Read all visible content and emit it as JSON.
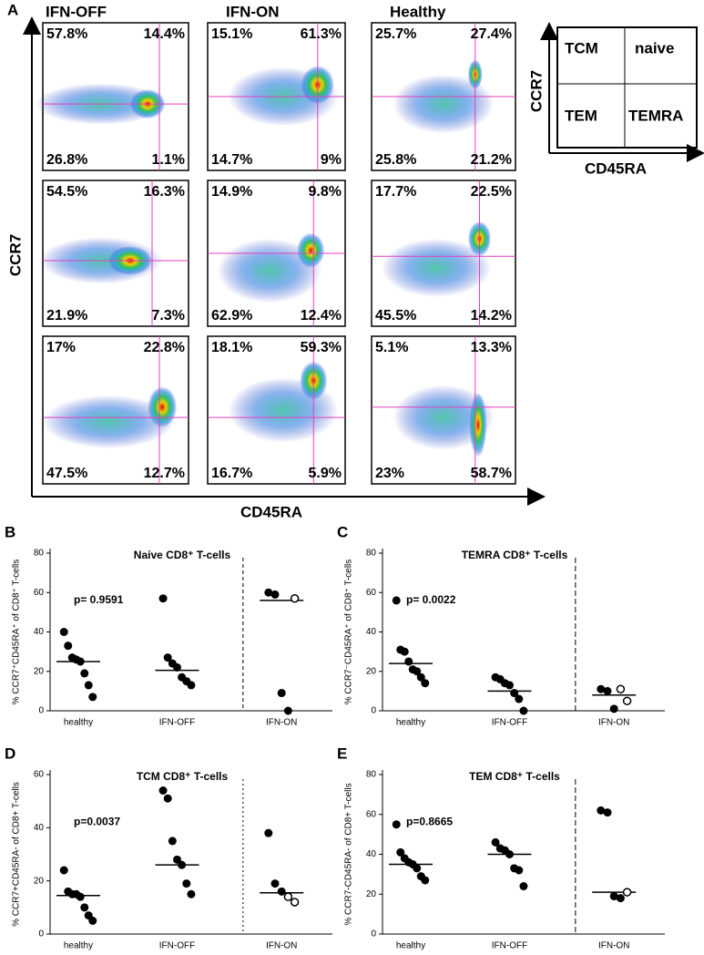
{
  "panel_a": {
    "label": "A",
    "columns": [
      "IFN-OFF",
      "IFN-ON",
      "Healthy"
    ],
    "y_label": "CCR7",
    "x_label": "CD45RA",
    "plots": [
      [
        [
          "57.8%",
          "14.4%",
          "26.8%",
          "1.1%"
        ],
        [
          "15.1%",
          "61.3%",
          "14.7%",
          "9%"
        ],
        [
          "25.7%",
          "27.4%",
          "25.8%",
          "21.2%"
        ]
      ],
      [
        [
          "54.5%",
          "16.3%",
          "21.9%",
          "7.3%"
        ],
        [
          "14.9%",
          "9.8%",
          "62.9%",
          "12.4%"
        ],
        [
          "17.7%",
          "22.5%",
          "45.5%",
          "14.2%"
        ]
      ],
      [
        [
          "17%",
          "22.8%",
          "47.5%",
          "12.7%"
        ],
        [
          "18.1%",
          "59.3%",
          "16.7%",
          "5.9%"
        ],
        [
          "5.1%",
          "13.3%",
          "23%",
          "58.7%"
        ]
      ]
    ],
    "legend": {
      "y_label": "CCR7",
      "x_label": "CD45RA",
      "cells": [
        "TCM",
        "naive",
        "TEM",
        "TEMRA"
      ]
    }
  },
  "chart_data": [
    {
      "type": "strip",
      "panel_label": "B",
      "title": "Naive CD8⁺ T-cells",
      "y_label": "% CCR7⁺CD45RA⁺ of CD8⁺ T-cells",
      "annotation": "p= 0.9591",
      "categories": [
        "healthy",
        "IFN-OFF",
        "IFN-ON"
      ],
      "values": [
        [
          40,
          33,
          27,
          26,
          25,
          19,
          13,
          7
        ],
        [
          57,
          27,
          24,
          22,
          17,
          15,
          13
        ],
        [
          60,
          59,
          9,
          0
        ]
      ],
      "open_values": [
        [],
        [],
        [
          57
        ]
      ],
      "medians": [
        25,
        20.5,
        56
      ],
      "color": "#000000",
      "ylim": [
        0,
        80
      ],
      "yticks": [
        0,
        20,
        40,
        60,
        80
      ]
    },
    {
      "type": "strip",
      "panel_label": "C",
      "title": "TEMRA CD8⁺ T-cells",
      "y_label": "% CCR7⁻CD45RA⁺ of CD8⁺ T-cells",
      "annotation": "p= 0.0022",
      "categories": [
        "healthy",
        "IFN-OFF",
        "IFN-ON"
      ],
      "values": [
        [
          56,
          31,
          30,
          25,
          21,
          20,
          17,
          14
        ],
        [
          17,
          16,
          14,
          13,
          9,
          6,
          0
        ],
        [
          11,
          10,
          1
        ]
      ],
      "open_values": [
        [],
        [],
        [
          11,
          5
        ]
      ],
      "medians": [
        24,
        10,
        8
      ],
      "color": "#000000",
      "ylim": [
        0,
        80
      ],
      "yticks": [
        0,
        20,
        40,
        60,
        80
      ]
    },
    {
      "type": "strip",
      "panel_label": "D",
      "title": "TCM CD8⁺ T-cells",
      "y_label": "% CCR7+CD45RA- of CD8+ T-cells",
      "annotation": "p=0.0037",
      "categories": [
        "healthy",
        "IFN-OFF",
        "IFN-ON"
      ],
      "values": [
        [
          24,
          16,
          15,
          15,
          14,
          10,
          7,
          5
        ],
        [
          54,
          51,
          35,
          28,
          26,
          19,
          15
        ],
        [
          38,
          19,
          16
        ]
      ],
      "open_values": [
        [],
        [],
        [
          14,
          12
        ]
      ],
      "medians": [
        14.5,
        26,
        15.5
      ],
      "color": "#000000",
      "ylim": [
        0,
        60
      ],
      "yticks": [
        0,
        20,
        40,
        60
      ]
    },
    {
      "type": "strip",
      "panel_label": "E",
      "title": "TEM CD8⁺ T-cells",
      "y_label": "% CCR7-CD45RA- of CD8+ T-cells",
      "annotation": "p=0.8665",
      "categories": [
        "healthy",
        "IFN-OFF",
        "IFN-ON"
      ],
      "values": [
        [
          55,
          41,
          38,
          36,
          35,
          33,
          29,
          27
        ],
        [
          46,
          43,
          42,
          40,
          33,
          32,
          24
        ],
        [
          62,
          61,
          19,
          18
        ]
      ],
      "open_values": [
        [],
        [],
        [
          21
        ]
      ],
      "medians": [
        35,
        40,
        21
      ],
      "color": "#000000",
      "ylim": [
        0,
        80
      ],
      "yticks": [
        0,
        20,
        40,
        60,
        80
      ]
    }
  ]
}
